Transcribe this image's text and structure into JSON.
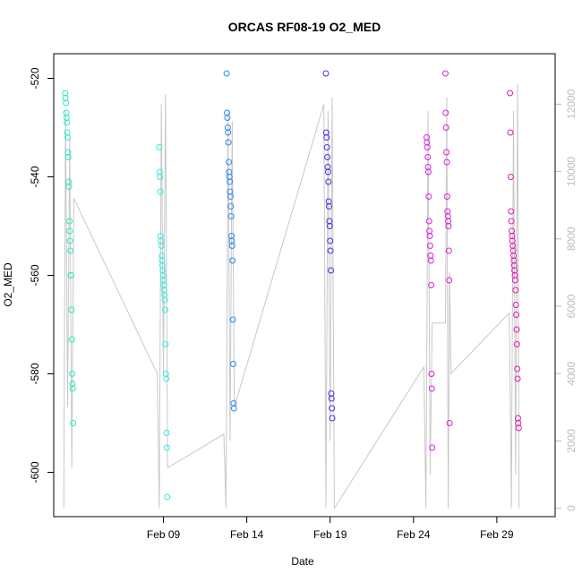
{
  "chart_data": {
    "type": "scatter",
    "title": "ORCAS RF08-19 O2_MED",
    "xlabel": "Date",
    "ylabel": "O2_MED",
    "x_axis": {
      "range": [
        "2016-02-02T10:00",
        "2016-03-03T12:00"
      ],
      "ticks": [
        {
          "date": "2016-02-09",
          "label": "Feb 09"
        },
        {
          "date": "2016-02-14",
          "label": "Feb 14"
        },
        {
          "date": "2016-02-19",
          "label": "Feb 19"
        },
        {
          "date": "2016-02-24",
          "label": "Feb 24"
        },
        {
          "date": "2016-02-29",
          "label": "Feb 29"
        }
      ]
    },
    "y_axis": {
      "range": [
        -609,
        -515
      ],
      "ticks": [
        {
          "value": -520,
          "label": "-520"
        },
        {
          "value": -540,
          "label": "-540"
        },
        {
          "value": -560,
          "label": "-560"
        },
        {
          "value": -580,
          "label": "-580"
        },
        {
          "value": -600,
          "label": "-600"
        }
      ]
    },
    "y2_axis": {
      "range": [
        -250,
        13500
      ],
      "color": "#bdbdbd",
      "ticks": [
        {
          "value": 0,
          "label": "0"
        },
        {
          "value": 2000,
          "label": "2000"
        },
        {
          "value": 4000,
          "label": "4000"
        },
        {
          "value": 6000,
          "label": "6000"
        },
        {
          "value": 8000,
          "label": "8000"
        },
        {
          "value": 10000,
          "label": "10000"
        },
        {
          "value": 12000,
          "label": "12000"
        }
      ]
    },
    "grid": false,
    "legend": "none",
    "altitude_color": "#c8c8c8",
    "series": [
      {
        "color": "#2fe8c0",
        "points": [
          [
            "2016-02-03T02:30",
            -523
          ],
          [
            "2016-02-03T03:00",
            -524
          ],
          [
            "2016-02-03T03:30",
            -525
          ],
          [
            "2016-02-03T04:00",
            -527
          ],
          [
            "2016-02-03T04:30",
            -528
          ],
          [
            "2016-02-03T05:00",
            -529
          ],
          [
            "2016-02-03T05:30",
            -531
          ],
          [
            "2016-02-03T06:00",
            -532
          ],
          [
            "2016-02-03T06:30",
            -535
          ],
          [
            "2016-02-03T07:00",
            -536
          ],
          [
            "2016-02-03T07:30",
            -541
          ],
          [
            "2016-02-03T08:00",
            -542
          ],
          [
            "2016-02-03T08:30",
            -549
          ],
          [
            "2016-02-03T09:00",
            -551
          ],
          [
            "2016-02-03T09:30",
            -553
          ],
          [
            "2016-02-03T10:00",
            -555
          ],
          [
            "2016-02-03T10:30",
            -560
          ],
          [
            "2016-02-03T11:00",
            -560
          ],
          [
            "2016-02-03T11:30",
            -567
          ],
          [
            "2016-02-03T12:00",
            -573
          ],
          [
            "2016-02-03T12:30",
            -580
          ],
          [
            "2016-02-03T13:00",
            -582
          ],
          [
            "2016-02-03T13:30",
            -583
          ],
          [
            "2016-02-03T14:00",
            -590
          ]
        ]
      },
      {
        "color": "#38e8e0",
        "points": [
          [
            "2016-02-08T18:00",
            -534
          ],
          [
            "2016-02-08T18:30",
            -539
          ],
          [
            "2016-02-08T19:00",
            -540
          ],
          [
            "2016-02-08T19:30",
            -543
          ],
          [
            "2016-02-08T20:00",
            -552
          ],
          [
            "2016-02-08T20:30",
            -553
          ],
          [
            "2016-02-08T21:00",
            -554
          ],
          [
            "2016-02-08T21:30",
            -556
          ],
          [
            "2016-02-08T22:00",
            -557
          ],
          [
            "2016-02-08T22:30",
            -558
          ],
          [
            "2016-02-08T23:00",
            -559
          ],
          [
            "2016-02-08T23:30",
            -560
          ],
          [
            "2016-02-09T00:00",
            -561
          ],
          [
            "2016-02-09T00:30",
            -562
          ],
          [
            "2016-02-09T01:00",
            -563
          ],
          [
            "2016-02-09T01:30",
            -564
          ],
          [
            "2016-02-09T02:00",
            -565
          ],
          [
            "2016-02-09T02:30",
            -567
          ],
          [
            "2016-02-09T03:00",
            -574
          ],
          [
            "2016-02-09T03:30",
            -580
          ],
          [
            "2016-02-09T04:00",
            -581
          ],
          [
            "2016-02-09T04:30",
            -592
          ],
          [
            "2016-02-09T05:00",
            -595
          ],
          [
            "2016-02-09T05:30",
            -605
          ]
        ]
      },
      {
        "color": "#2a8ce8",
        "points": [
          [
            "2016-02-12T19:00",
            -519
          ],
          [
            "2016-02-12T19:30",
            -527
          ],
          [
            "2016-02-12T20:00",
            -528
          ],
          [
            "2016-02-12T20:30",
            -530
          ],
          [
            "2016-02-12T21:00",
            -531
          ],
          [
            "2016-02-12T21:30",
            -533
          ],
          [
            "2016-02-12T22:00",
            -537
          ],
          [
            "2016-02-12T22:30",
            -539
          ],
          [
            "2016-02-12T23:00",
            -540
          ],
          [
            "2016-02-12T23:30",
            -541
          ],
          [
            "2016-02-13T00:00",
            -543
          ],
          [
            "2016-02-13T00:30",
            -544
          ],
          [
            "2016-02-13T01:00",
            -546
          ],
          [
            "2016-02-13T01:30",
            -548
          ],
          [
            "2016-02-13T02:00",
            -552
          ],
          [
            "2016-02-13T02:30",
            -553
          ],
          [
            "2016-02-13T03:00",
            -554
          ],
          [
            "2016-02-13T03:30",
            -557
          ],
          [
            "2016-02-13T04:00",
            -569
          ],
          [
            "2016-02-13T04:30",
            -578
          ],
          [
            "2016-02-13T05:00",
            -586
          ],
          [
            "2016-02-13T05:30",
            -587
          ]
        ]
      },
      {
        "color": "#4a30e0",
        "points": [
          [
            "2016-02-18T18:00",
            -519
          ],
          [
            "2016-02-18T18:30",
            -531
          ],
          [
            "2016-02-18T19:00",
            -532
          ],
          [
            "2016-02-18T19:30",
            -534
          ],
          [
            "2016-02-18T20:00",
            -536
          ],
          [
            "2016-02-18T20:30",
            -538
          ],
          [
            "2016-02-18T21:00",
            -539
          ],
          [
            "2016-02-18T21:30",
            -541
          ],
          [
            "2016-02-18T22:00",
            -545
          ],
          [
            "2016-02-18T22:30",
            -546
          ],
          [
            "2016-02-18T23:00",
            -549
          ],
          [
            "2016-02-18T23:30",
            -550
          ],
          [
            "2016-02-19T00:00",
            -553
          ],
          [
            "2016-02-19T00:30",
            -555
          ],
          [
            "2016-02-19T01:00",
            -559
          ],
          [
            "2016-02-19T01:30",
            -584
          ],
          [
            "2016-02-19T02:00",
            -585
          ],
          [
            "2016-02-19T02:30",
            -587
          ],
          [
            "2016-02-19T03:00",
            -589
          ]
        ]
      },
      {
        "color": "#d820e0",
        "points": [
          [
            "2016-02-24T19:00",
            -532
          ],
          [
            "2016-02-24T19:30",
            -533
          ],
          [
            "2016-02-24T20:00",
            -534
          ],
          [
            "2016-02-24T20:30",
            -536
          ],
          [
            "2016-02-24T21:00",
            -538
          ],
          [
            "2016-02-24T21:30",
            -539
          ],
          [
            "2016-02-24T22:00",
            -544
          ],
          [
            "2016-02-24T22:30",
            -549
          ],
          [
            "2016-02-24T23:00",
            -551
          ],
          [
            "2016-02-24T23:30",
            -552
          ],
          [
            "2016-02-25T00:00",
            -554
          ],
          [
            "2016-02-25T00:30",
            -556
          ],
          [
            "2016-02-25T01:00",
            -557
          ],
          [
            "2016-02-25T01:30",
            -562
          ],
          [
            "2016-02-25T02:00",
            -580
          ],
          [
            "2016-02-25T02:30",
            -583
          ],
          [
            "2016-02-25T03:00",
            -595
          ]
        ]
      },
      {
        "color": "#e020d0",
        "points": [
          [
            "2016-02-25T22:00",
            -519
          ],
          [
            "2016-02-25T22:30",
            -527
          ],
          [
            "2016-02-25T23:00",
            -530
          ],
          [
            "2016-02-25T23:30",
            -535
          ],
          [
            "2016-02-26T00:00",
            -537
          ],
          [
            "2016-02-26T00:30",
            -544
          ],
          [
            "2016-02-26T01:00",
            -547
          ],
          [
            "2016-02-26T01:30",
            -548
          ],
          [
            "2016-02-26T02:00",
            -549
          ],
          [
            "2016-02-26T02:30",
            -550
          ],
          [
            "2016-02-26T03:00",
            -555
          ],
          [
            "2016-02-26T03:30",
            -561
          ],
          [
            "2016-02-26T04:00",
            -590
          ]
        ]
      },
      {
        "color": "#e01cb0",
        "points": [
          [
            "2016-02-29T19:00",
            -523
          ],
          [
            "2016-02-29T19:30",
            -531
          ],
          [
            "2016-02-29T20:00",
            -540
          ],
          [
            "2016-02-29T20:30",
            -547
          ],
          [
            "2016-02-29T21:00",
            -549
          ],
          [
            "2016-02-29T21:30",
            -551
          ],
          [
            "2016-02-29T22:00",
            -552
          ],
          [
            "2016-02-29T22:30",
            -553
          ],
          [
            "2016-02-29T23:00",
            -554
          ],
          [
            "2016-02-29T23:30",
            -555
          ],
          [
            "2016-03-01T00:00",
            -556
          ],
          [
            "2016-03-01T00:30",
            -557
          ],
          [
            "2016-03-01T01:00",
            -558
          ],
          [
            "2016-03-01T01:30",
            -559
          ],
          [
            "2016-03-01T02:00",
            -560
          ],
          [
            "2016-03-01T02:30",
            -561
          ],
          [
            "2016-03-01T03:00",
            -563
          ],
          [
            "2016-03-01T03:30",
            -566
          ],
          [
            "2016-03-01T04:00",
            -568
          ],
          [
            "2016-03-01T04:30",
            -571
          ],
          [
            "2016-03-01T05:00",
            -574
          ],
          [
            "2016-03-01T05:30",
            -579
          ],
          [
            "2016-03-01T06:00",
            -581
          ],
          [
            "2016-03-01T06:30",
            -589
          ],
          [
            "2016-03-01T07:00",
            -590
          ],
          [
            "2016-03-01T07:30",
            -591
          ]
        ]
      }
    ],
    "altitude": [
      [
        "2016-02-03T00:30",
        0
      ],
      [
        "2016-02-03T03:00",
        11800
      ],
      [
        "2016-02-03T06:00",
        3000
      ],
      [
        "2016-02-03T09:00",
        11000
      ],
      [
        "2016-02-03T12:00",
        1200
      ],
      [
        "2016-02-03T15:00",
        9200
      ],
      [
        "2016-02-08T15:00",
        4000
      ],
      [
        "2016-02-08T18:00",
        0
      ],
      [
        "2016-02-08T21:00",
        12000
      ],
      [
        "2016-02-09T00:00",
        4000
      ],
      [
        "2016-02-09T03:00",
        12300
      ],
      [
        "2016-02-09T06:00",
        1200
      ],
      [
        "2016-02-12T15:00",
        2200
      ],
      [
        "2016-02-12T18:00",
        0
      ],
      [
        "2016-02-12T21:00",
        11800
      ],
      [
        "2016-02-13T00:00",
        2000
      ],
      [
        "2016-02-13T03:00",
        11500
      ],
      [
        "2016-02-13T06:00",
        3000
      ],
      [
        "2016-02-18T15:00",
        12000
      ],
      [
        "2016-02-18T18:00",
        0
      ],
      [
        "2016-02-18T21:00",
        11800
      ],
      [
        "2016-02-19T00:00",
        2000
      ],
      [
        "2016-02-19T03:00",
        12200
      ],
      [
        "2016-02-19T06:00",
        0
      ],
      [
        "2016-02-24T15:00",
        4200
      ],
      [
        "2016-02-24T18:00",
        0
      ],
      [
        "2016-02-24T21:00",
        11800
      ],
      [
        "2016-02-25T00:00",
        1000
      ],
      [
        "2016-02-25T03:00",
        5500
      ],
      [
        "2016-02-25T22:00",
        5500
      ],
      [
        "2016-02-26T00:00",
        12200
      ],
      [
        "2016-02-26T02:00",
        0
      ],
      [
        "2016-02-26T04:00",
        7000
      ],
      [
        "2016-02-26T06:00",
        4000
      ],
      [
        "2016-02-29T18:00",
        5800
      ],
      [
        "2016-02-29T21:00",
        0
      ],
      [
        "2016-03-01T00:00",
        11800
      ],
      [
        "2016-03-01T03:00",
        1000
      ],
      [
        "2016-03-01T06:00",
        12600
      ],
      [
        "2016-03-01T08:00",
        0
      ]
    ]
  }
}
